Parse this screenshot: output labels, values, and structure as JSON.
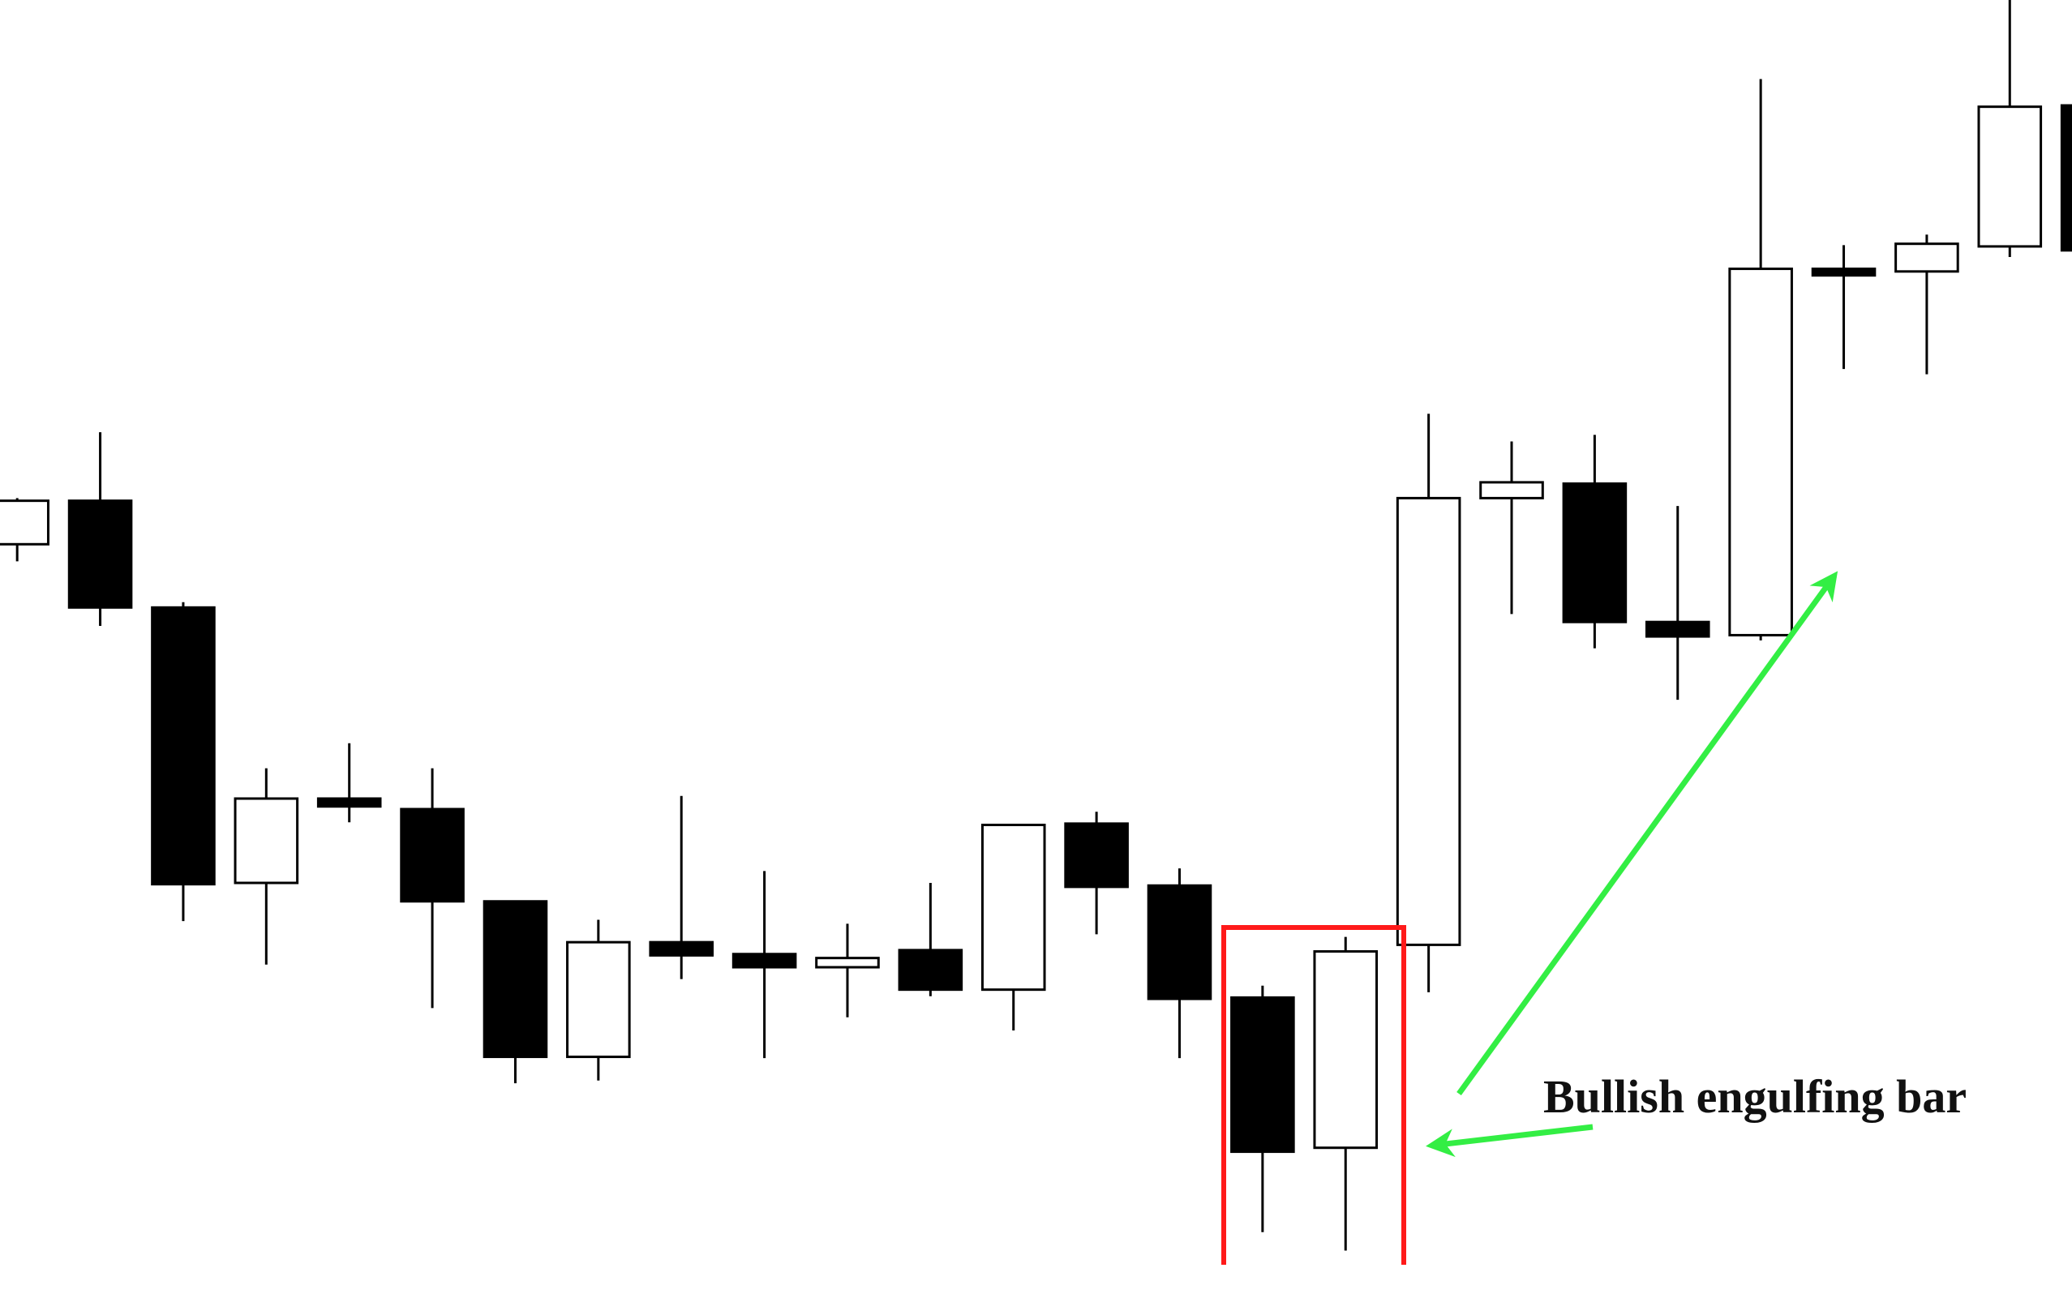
{
  "chart_data": {
    "type": "candlestick",
    "annotation": "Bullish engulfing bar",
    "open": [
      572,
      605,
      524,
      315,
      379,
      371,
      301,
      183,
      270,
      261,
      251,
      264,
      234,
      360,
      313,
      228,
      114,
      268,
      607,
      618,
      513,
      503,
      781,
      779,
      798,
      905
    ],
    "high": [
      607,
      657,
      528,
      402,
      421,
      402,
      301,
      287,
      381,
      324,
      284,
      315,
      359,
      369,
      326,
      237,
      274,
      671,
      650,
      655,
      601,
      925,
      799,
      807,
      985,
      907
    ],
    "low": [
      559,
      510,
      286,
      253,
      361,
      220,
      163,
      165,
      242,
      182,
      213,
      229,
      203,
      276,
      182,
      50,
      36,
      232,
      519,
      493,
      454,
      499,
      705,
      701,
      790,
      793
    ],
    "close": [
      605,
      524,
      314,
      379,
      373,
      301,
      183,
      270,
      260,
      251,
      258,
      234,
      359,
      312,
      227,
      111,
      263,
      607,
      619,
      513,
      502,
      781,
      776,
      800,
      904,
      795
    ],
    "up_color": "#ffffff",
    "down_color": "#000000",
    "ylim": [
      0,
      985
    ]
  }
}
